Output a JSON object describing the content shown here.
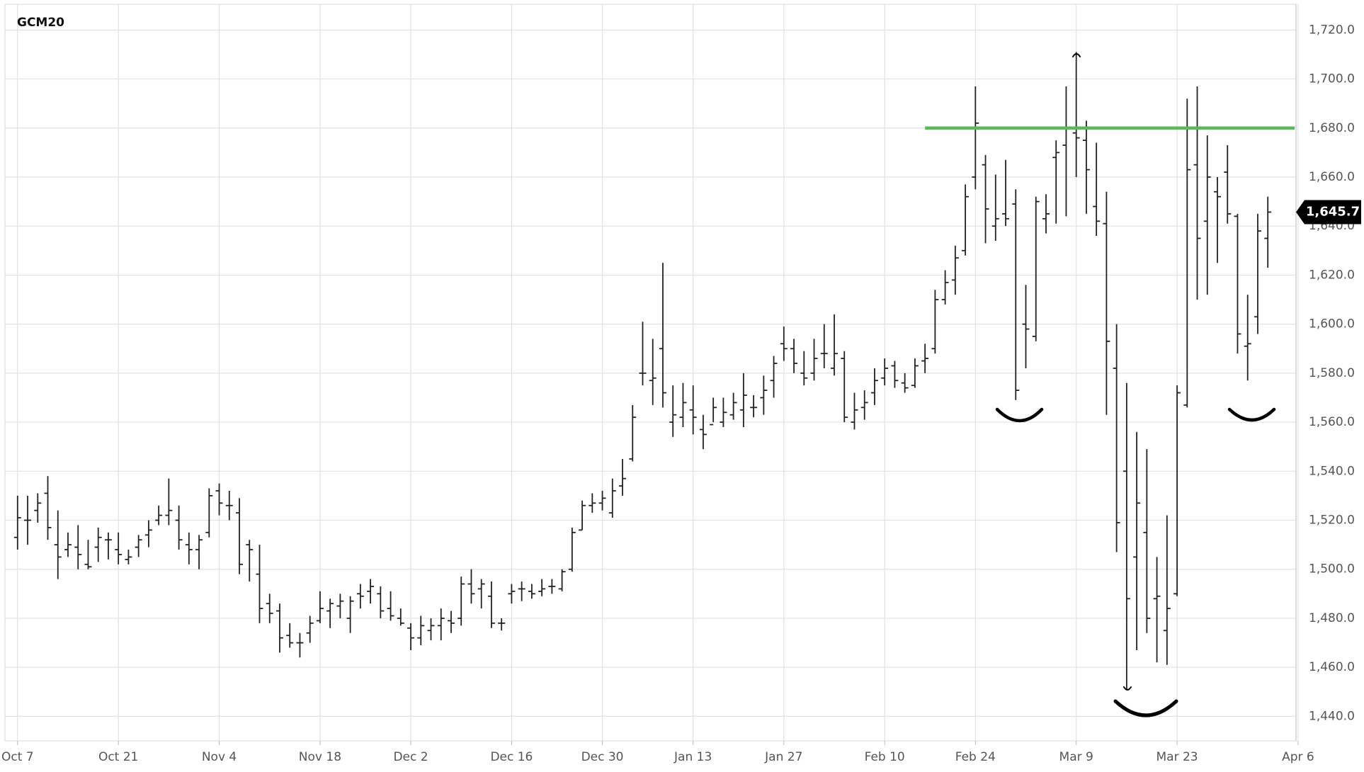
{
  "chart_data": {
    "type": "ohlc",
    "title": "GCM20",
    "x": [
      "Oct 7",
      "Oct 8",
      "Oct 9",
      "Oct 10",
      "Oct 11",
      "Oct 14",
      "Oct 15",
      "Oct 16",
      "Oct 17",
      "Oct 18",
      "Oct 21",
      "Oct 22",
      "Oct 23",
      "Oct 24",
      "Oct 25",
      "Oct 28",
      "Oct 29",
      "Oct 30",
      "Oct 31",
      "Nov 1",
      "Nov 4",
      "Nov 5",
      "Nov 6",
      "Nov 7",
      "Nov 8",
      "Nov 11",
      "Nov 12",
      "Nov 13",
      "Nov 14",
      "Nov 15",
      "Nov 18",
      "Nov 19",
      "Nov 20",
      "Nov 21",
      "Nov 22",
      "Nov 25",
      "Nov 26",
      "Nov 27",
      "Nov 29",
      "Dec 2",
      "Dec 3",
      "Dec 4",
      "Dec 5",
      "Dec 6",
      "Dec 9",
      "Dec 10",
      "Dec 11",
      "Dec 12",
      "Dec 13",
      "Dec 16",
      "Dec 17",
      "Dec 18",
      "Dec 19",
      "Dec 20",
      "Dec 23",
      "Dec 24",
      "Dec 26",
      "Dec 27",
      "Dec 30",
      "Dec 31",
      "Jan 2",
      "Jan 3",
      "Jan 6",
      "Jan 7",
      "Jan 8",
      "Jan 9",
      "Jan 10",
      "Jan 13",
      "Jan 14",
      "Jan 15",
      "Jan 16",
      "Jan 17",
      "Jan 21",
      "Jan 22",
      "Jan 23",
      "Jan 24",
      "Jan 27",
      "Jan 28",
      "Jan 29",
      "Jan 30",
      "Jan 31",
      "Feb 3",
      "Feb 4",
      "Feb 5",
      "Feb 6",
      "Feb 7",
      "Feb 10",
      "Feb 11",
      "Feb 12",
      "Feb 13",
      "Feb 14",
      "Feb 18",
      "Feb 19",
      "Feb 20",
      "Feb 21",
      "Feb 24",
      "Feb 25",
      "Feb 26",
      "Feb 27",
      "Feb 28",
      "Mar 2",
      "Mar 3",
      "Mar 4",
      "Mar 5",
      "Mar 6",
      "Mar 9",
      "Mar 10",
      "Mar 11",
      "Mar 12",
      "Mar 13",
      "Mar 16",
      "Mar 17",
      "Mar 18",
      "Mar 19",
      "Mar 20",
      "Mar 23",
      "Mar 24",
      "Mar 25",
      "Mar 26",
      "Mar 27",
      "Mar 30",
      "Mar 31",
      "Apr 1",
      "Apr 2",
      "Apr 3"
    ],
    "open": [
      1513,
      1520,
      1524,
      1531,
      1510,
      1508,
      1509,
      1502,
      1509,
      1512,
      1508,
      1504,
      1509,
      1514,
      1520,
      1522,
      1520,
      1510,
      1508,
      1515,
      1532,
      1526,
      1523,
      1510,
      1498,
      1486,
      1483,
      1473,
      1470,
      1474,
      1479,
      1483,
      1485,
      1480,
      1490,
      1491,
      1490,
      1484,
      1480,
      1476,
      1472,
      1475,
      1477,
      1479,
      1480,
      1494,
      1492,
      1489,
      1478,
      1490,
      1492,
      1491,
      1491,
      1493,
      1492,
      1500,
      1516,
      1526,
      1527,
      1523,
      1534,
      1545,
      1580,
      1577,
      1590,
      1560,
      1562,
      1565,
      1557,
      1559,
      1560,
      1563,
      1565,
      1566,
      1570,
      1577,
      1592,
      1590,
      1580,
      1580,
      1588,
      1582,
      1586,
      1560,
      1566,
      1572,
      1578,
      1583,
      1576,
      1575,
      1585,
      1590,
      1610,
      1618,
      1630,
      1660,
      1665,
      1640,
      1645,
      1649,
      1600,
      1595,
      1643,
      1668,
      1673,
      1678,
      1675,
      1648,
      1641,
      1582,
      1540,
      1505,
      1515,
      1488,
      1475,
      1490,
      1567,
      1665,
      1642,
      1654,
      1662,
      1644,
      1591,
      1603,
      1635
    ],
    "high": [
      1530,
      1530,
      1531,
      1538,
      1524,
      1515,
      1518,
      1512,
      1517,
      1515,
      1515,
      1508,
      1514,
      1520,
      1526,
      1537,
      1526,
      1515,
      1514,
      1533,
      1535,
      1532,
      1529,
      1512,
      1510,
      1490,
      1486,
      1478,
      1474,
      1481,
      1491,
      1488,
      1490,
      1489,
      1494,
      1496,
      1493,
      1491,
      1484,
      1478,
      1481,
      1480,
      1484,
      1483,
      1497,
      1500,
      1496,
      1495,
      1480,
      1494,
      1495,
      1494,
      1496,
      1496,
      1500,
      1517,
      1528,
      1531,
      1532,
      1537,
      1545,
      1567,
      1601,
      1594,
      1625,
      1575,
      1576,
      1575,
      1563,
      1570,
      1570,
      1572,
      1580,
      1571,
      1579,
      1587,
      1599,
      1594,
      1589,
      1594,
      1600,
      1604,
      1589,
      1572,
      1573,
      1582,
      1586,
      1585,
      1580,
      1586,
      1592,
      1614,
      1622,
      1632,
      1657,
      1697,
      1669,
      1661,
      1667,
      1655,
      1616,
      1652,
      1653,
      1675,
      1697,
      1711,
      1683,
      1674,
      1654,
      1600,
      1576,
      1556,
      1549,
      1505,
      1522,
      1575,
      1692,
      1697,
      1677,
      1660,
      1673,
      1645,
      1612,
      1645,
      1652
    ],
    "low": [
      1508,
      1510,
      1519,
      1512,
      1496,
      1505,
      1500,
      1500,
      1503,
      1504,
      1502,
      1502,
      1505,
      1509,
      1518,
      1518,
      1508,
      1502,
      1500,
      1513,
      1522,
      1520,
      1498,
      1495,
      1478,
      1478,
      1466,
      1468,
      1464,
      1470,
      1478,
      1476,
      1480,
      1474,
      1484,
      1486,
      1480,
      1479,
      1477,
      1467,
      1469,
      1471,
      1471,
      1474,
      1477,
      1486,
      1484,
      1476,
      1475,
      1486,
      1487,
      1488,
      1489,
      1490,
      1491,
      1499,
      1516,
      1523,
      1524,
      1521,
      1530,
      1544,
      1575,
      1567,
      1566,
      1554,
      1558,
      1555,
      1549,
      1560,
      1558,
      1561,
      1558,
      1562,
      1563,
      1570,
      1585,
      1580,
      1575,
      1577,
      1582,
      1579,
      1560,
      1557,
      1561,
      1567,
      1575,
      1574,
      1572,
      1574,
      1580,
      1588,
      1608,
      1612,
      1628,
      1655,
      1633,
      1634,
      1640,
      1569,
      1582,
      1593,
      1637,
      1641,
      1644,
      1660,
      1645,
      1636,
      1563,
      1507,
      1451,
      1467,
      1474,
      1462,
      1461,
      1489,
      1566,
      1610,
      1612,
      1625,
      1641,
      1588,
      1577,
      1596,
      1623
    ],
    "close": [
      1521,
      1520,
      1527,
      1517,
      1505,
      1510,
      1506,
      1501,
      1513,
      1512,
      1506,
      1505,
      1512,
      1516,
      1522,
      1524,
      1512,
      1508,
      1512,
      1530,
      1527,
      1526,
      1502,
      1508,
      1484,
      1482,
      1472,
      1470,
      1470,
      1478,
      1484,
      1486,
      1487,
      1487,
      1489,
      1493,
      1483,
      1481,
      1478,
      1472,
      1477,
      1477,
      1480,
      1478,
      1494,
      1490,
      1494,
      1478,
      1478,
      1491,
      1492,
      1490,
      1492,
      1493,
      1499,
      1515,
      1526,
      1527,
      1529,
      1532,
      1537,
      1562,
      1580,
      1578,
      1572,
      1563,
      1568,
      1562,
      1555,
      1566,
      1564,
      1568,
      1571,
      1566,
      1573,
      1584,
      1590,
      1584,
      1578,
      1586,
      1588,
      1588,
      1562,
      1565,
      1568,
      1577,
      1582,
      1577,
      1574,
      1583,
      1586,
      1610,
      1617,
      1627,
      1652,
      1682,
      1647,
      1643,
      1643,
      1573,
      1598,
      1650,
      1645,
      1670,
      1680,
      1676,
      1663,
      1642,
      1593,
      1519,
      1488,
      1527,
      1480,
      1489,
      1484,
      1572,
      1663,
      1635,
      1660,
      1652,
      1645,
      1596,
      1592,
      1638,
      1645.7
    ],
    "color": "#222222",
    "xticks": [
      "Oct 7",
      "Oct 21",
      "Nov 4",
      "Nov 18",
      "Dec 2",
      "Dec 16",
      "Dec 30",
      "Jan 13",
      "Jan 27",
      "Feb 10",
      "Feb 24",
      "Mar 9",
      "Mar 23",
      "Apr 6"
    ],
    "ylim": [
      1430,
      1730.5
    ],
    "yticks": [
      {
        "value": 1440,
        "label": "1,440.0"
      },
      {
        "value": 1460,
        "label": "1,460.0"
      },
      {
        "value": 1480,
        "label": "1,480.0"
      },
      {
        "value": 1500,
        "label": "1,500.0"
      },
      {
        "value": 1520,
        "label": "1,520.0"
      },
      {
        "value": 1540,
        "label": "1,540.0"
      },
      {
        "value": 1560,
        "label": "1,560.0"
      },
      {
        "value": 1580,
        "label": "1,580.0"
      },
      {
        "value": 1600,
        "label": "1,600.0"
      },
      {
        "value": 1620,
        "label": "1,620.0"
      },
      {
        "value": 1640,
        "label": "1,640.0"
      },
      {
        "value": 1660,
        "label": "1,660.0"
      },
      {
        "value": 1680,
        "label": "1,680.0"
      },
      {
        "value": 1700,
        "label": "1,700.0"
      },
      {
        "value": 1720,
        "label": "1,720.0"
      }
    ],
    "grid": true,
    "last_price": {
      "value": 1645.7,
      "label": "1,645.7"
    },
    "reference_line": {
      "value": 1680,
      "start": "Feb 14",
      "color": "#5cb85c"
    }
  }
}
